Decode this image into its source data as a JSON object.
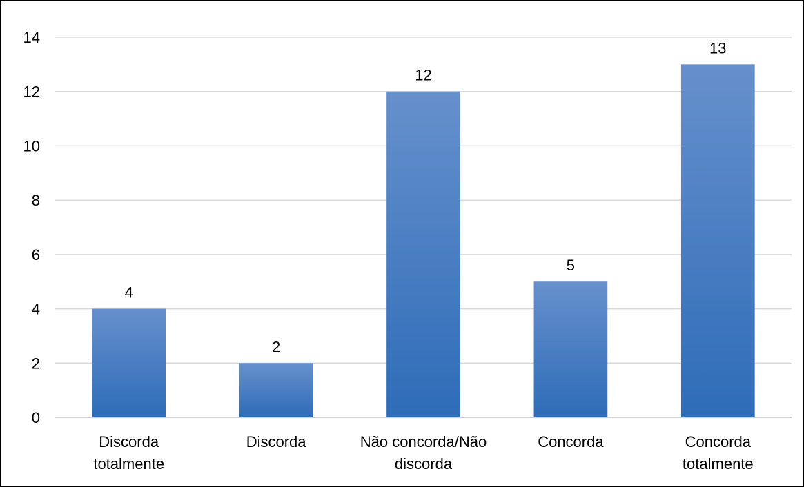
{
  "chart_data": {
    "type": "bar",
    "title": "",
    "xlabel": "",
    "ylabel": "",
    "categories": [
      [
        "Discorda",
        "totalmente"
      ],
      [
        "Discorda"
      ],
      [
        "Não concorda/Não",
        "discorda"
      ],
      [
        "Concorda"
      ],
      [
        "Concorda",
        "totalmente"
      ]
    ],
    "values": [
      4,
      2,
      12,
      5,
      13
    ],
    "data_labels": [
      "4",
      "2",
      "12",
      "5",
      "13"
    ],
    "ylim": [
      0,
      14
    ],
    "yticks": [
      0,
      2,
      4,
      6,
      8,
      10,
      12,
      14
    ],
    "grid": true,
    "legend": "none",
    "bar_color_top": "#6690cc",
    "bar_color_bottom": "#2e6cb8",
    "grid_color": "#d9d9d9"
  }
}
